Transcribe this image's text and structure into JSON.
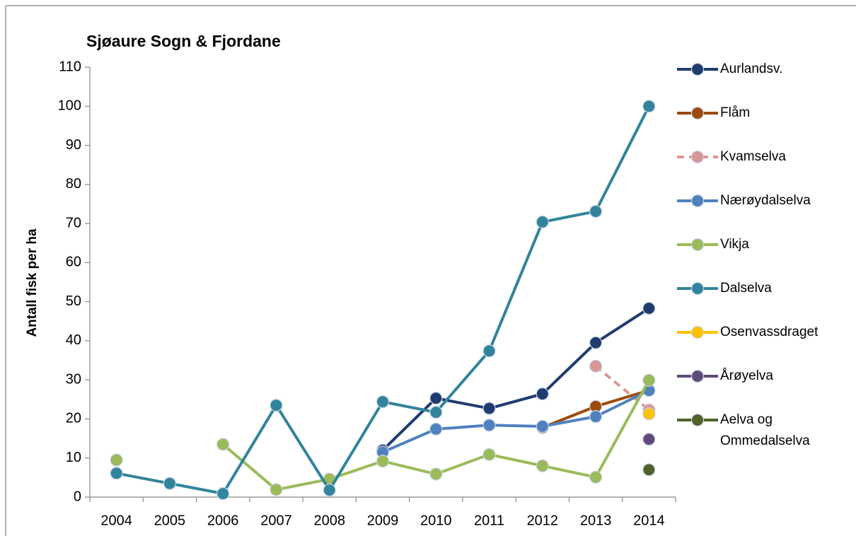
{
  "chart_data": {
    "type": "line",
    "title": "Sjøaure Sogn & Fjordane",
    "y_label": "Antall fisk per ha",
    "categories": [
      "2004",
      "2005",
      "2006",
      "2007",
      "2008",
      "2009",
      "2010",
      "2011",
      "2012",
      "2013",
      "2014"
    ],
    "ylim": [
      0,
      110
    ],
    "yticks": [
      0,
      10,
      20,
      30,
      40,
      50,
      60,
      70,
      80,
      90,
      100,
      110
    ],
    "grid": false,
    "legend": "right",
    "series": [
      {
        "name": "Aurlandsv.",
        "color": "#1f3c6e",
        "values": [
          null,
          null,
          null,
          null,
          null,
          12,
          25.3,
          22.7,
          26.4,
          39.5,
          48.3
        ]
      },
      {
        "name": "Flåm",
        "color": "#9c4a0c",
        "values": [
          null,
          null,
          null,
          null,
          null,
          null,
          null,
          null,
          17.8,
          23.2,
          27.3
        ]
      },
      {
        "name": "Kvamselva",
        "color": "#d99694",
        "dashed": true,
        "values": [
          null,
          null,
          null,
          null,
          null,
          null,
          null,
          null,
          null,
          33.5,
          22.3
        ]
      },
      {
        "name": "Nærøydalselva",
        "color": "#4f81bd",
        "values": [
          null,
          null,
          null,
          null,
          null,
          11.5,
          17.4,
          18.4,
          18.1,
          20.6,
          27.3
        ]
      },
      {
        "name": "Vikja",
        "color": "#9bbb59",
        "values": [
          9.5,
          null,
          13.5,
          1.9,
          4.6,
          9.2,
          5.9,
          10.9,
          8.0,
          5.1,
          29.9
        ]
      },
      {
        "name": "Dalselva",
        "color": "#31849b",
        "values": [
          6.1,
          3.5,
          0.9,
          23.5,
          1.8,
          24.4,
          21.7,
          37.4,
          70.4,
          73.1,
          100
        ]
      },
      {
        "name": "Osenvassdraget",
        "color": "#ffc000",
        "values": [
          null,
          null,
          null,
          null,
          null,
          null,
          null,
          null,
          null,
          null,
          21.3
        ]
      },
      {
        "name": "Årøyelva",
        "color": "#604a7b",
        "values": [
          null,
          null,
          null,
          null,
          null,
          null,
          null,
          null,
          null,
          null,
          14.8
        ]
      },
      {
        "name": "Aelva og Ommedalselva",
        "color": "#4f6228",
        "values": [
          null,
          null,
          null,
          null,
          null,
          null,
          null,
          null,
          null,
          null,
          7.0
        ]
      }
    ]
  }
}
